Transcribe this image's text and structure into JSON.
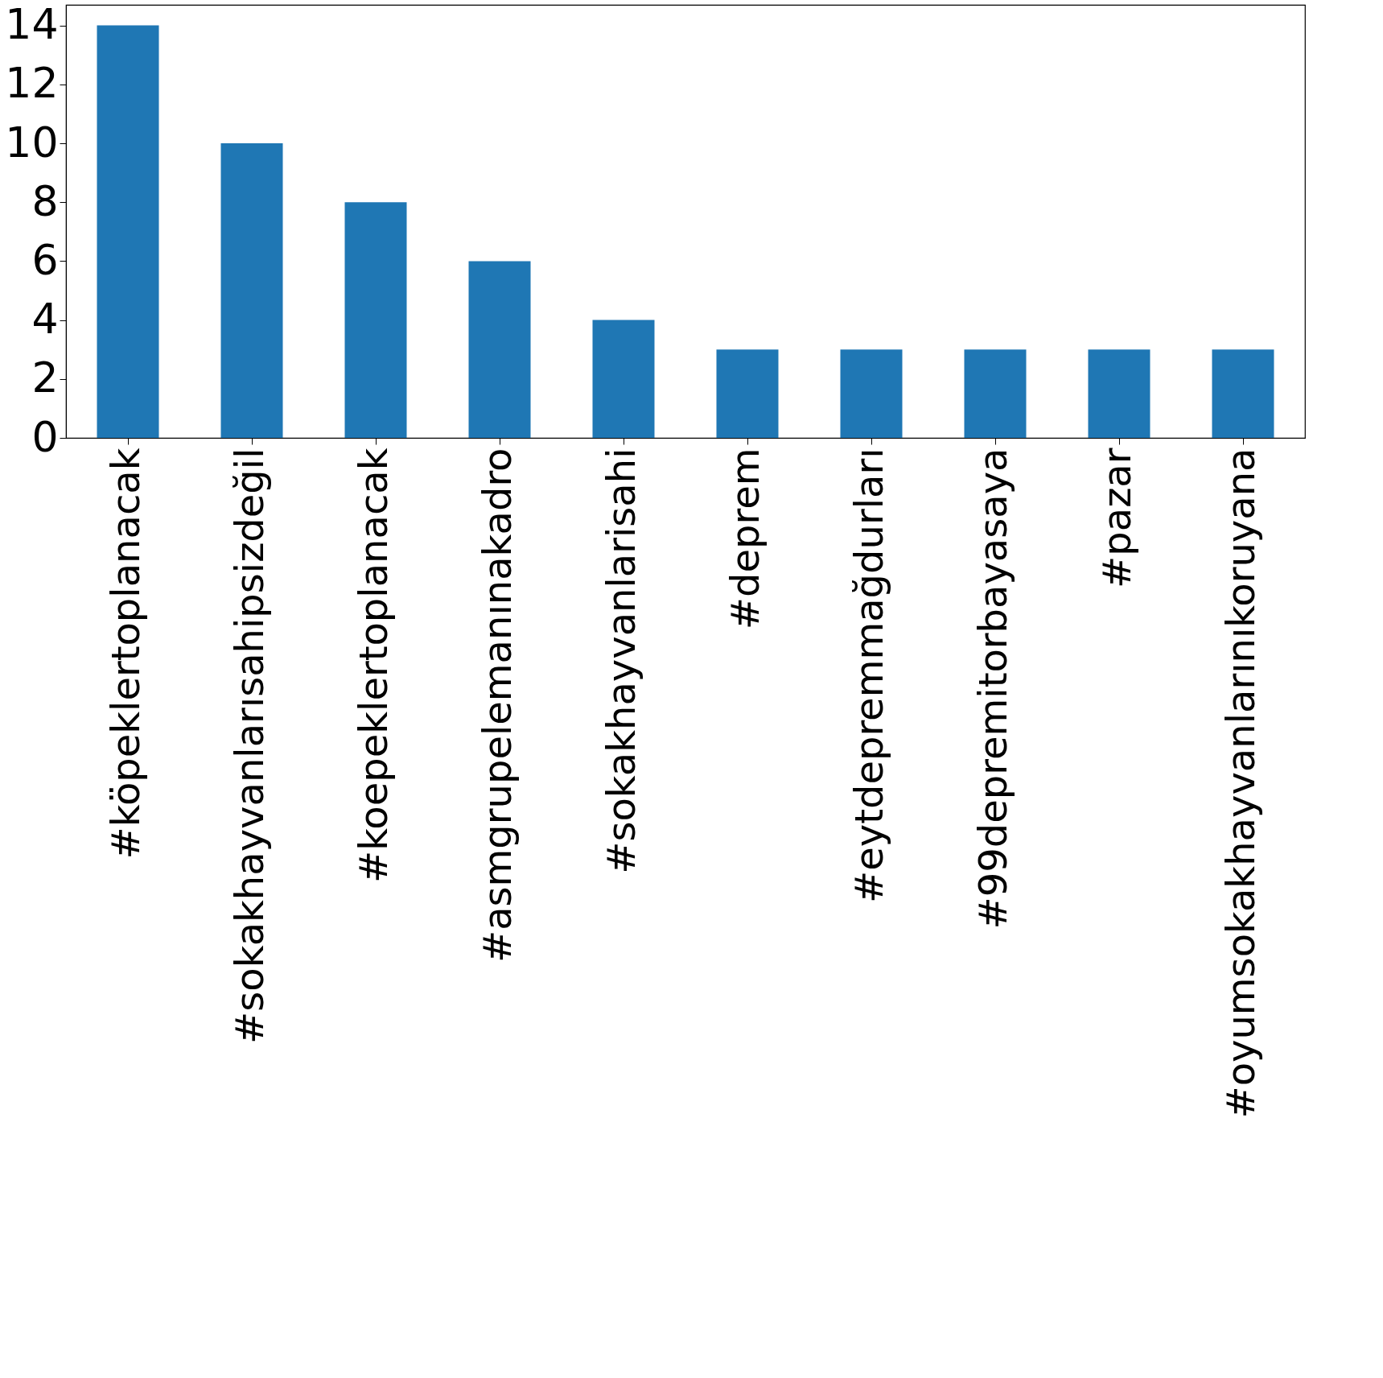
{
  "chart_data": {
    "type": "bar",
    "categories": [
      "#köpeklertoplanacak",
      "#sokakhayvanlarısahipsizdeğil",
      "#koepeklertoplanacak",
      "#asmgrupelemanınakadro",
      "#sokakhayvanlarisahi",
      "#deprem",
      "#eytdepremmağdurları",
      "#99depremitorbayasaya",
      "#pazar",
      "#oyumsokakhayvanlarınıkoruyana"
    ],
    "values": [
      14,
      10,
      8,
      6,
      4,
      3,
      3,
      3,
      3,
      3
    ],
    "color": "#1f77b4",
    "ylim": [
      0,
      14.7
    ],
    "yticks": [
      0,
      2,
      4,
      6,
      8,
      10,
      12,
      14
    ],
    "grid": false
  }
}
